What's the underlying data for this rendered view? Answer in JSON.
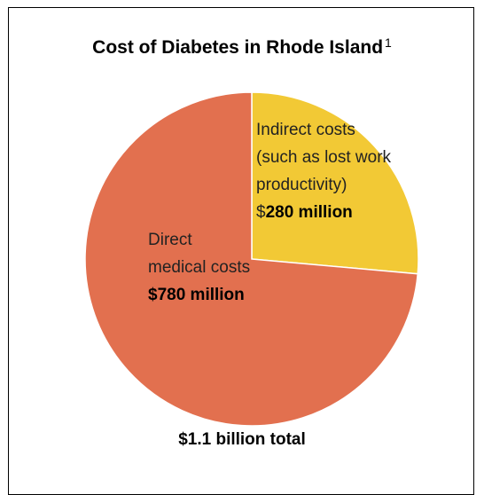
{
  "chart_data": {
    "type": "pie",
    "title": "Cost of Diabetes in Rhode Island",
    "title_footnote": "1",
    "slices": [
      {
        "name": "Indirect costs (such as lost work productivity)",
        "value": 280,
        "label_lines": [
          "Indirect costs",
          "(such as lost work",
          "productivity)"
        ],
        "value_prefix": "$",
        "value_label": "280 million",
        "color": "#F2C935"
      },
      {
        "name": "Direct medical costs",
        "value": 780,
        "label_lines": [
          "Direct",
          "medical costs"
        ],
        "value_label": "$780 million",
        "color": "#E2704F"
      }
    ],
    "total_label": "$1.1 billion total"
  }
}
